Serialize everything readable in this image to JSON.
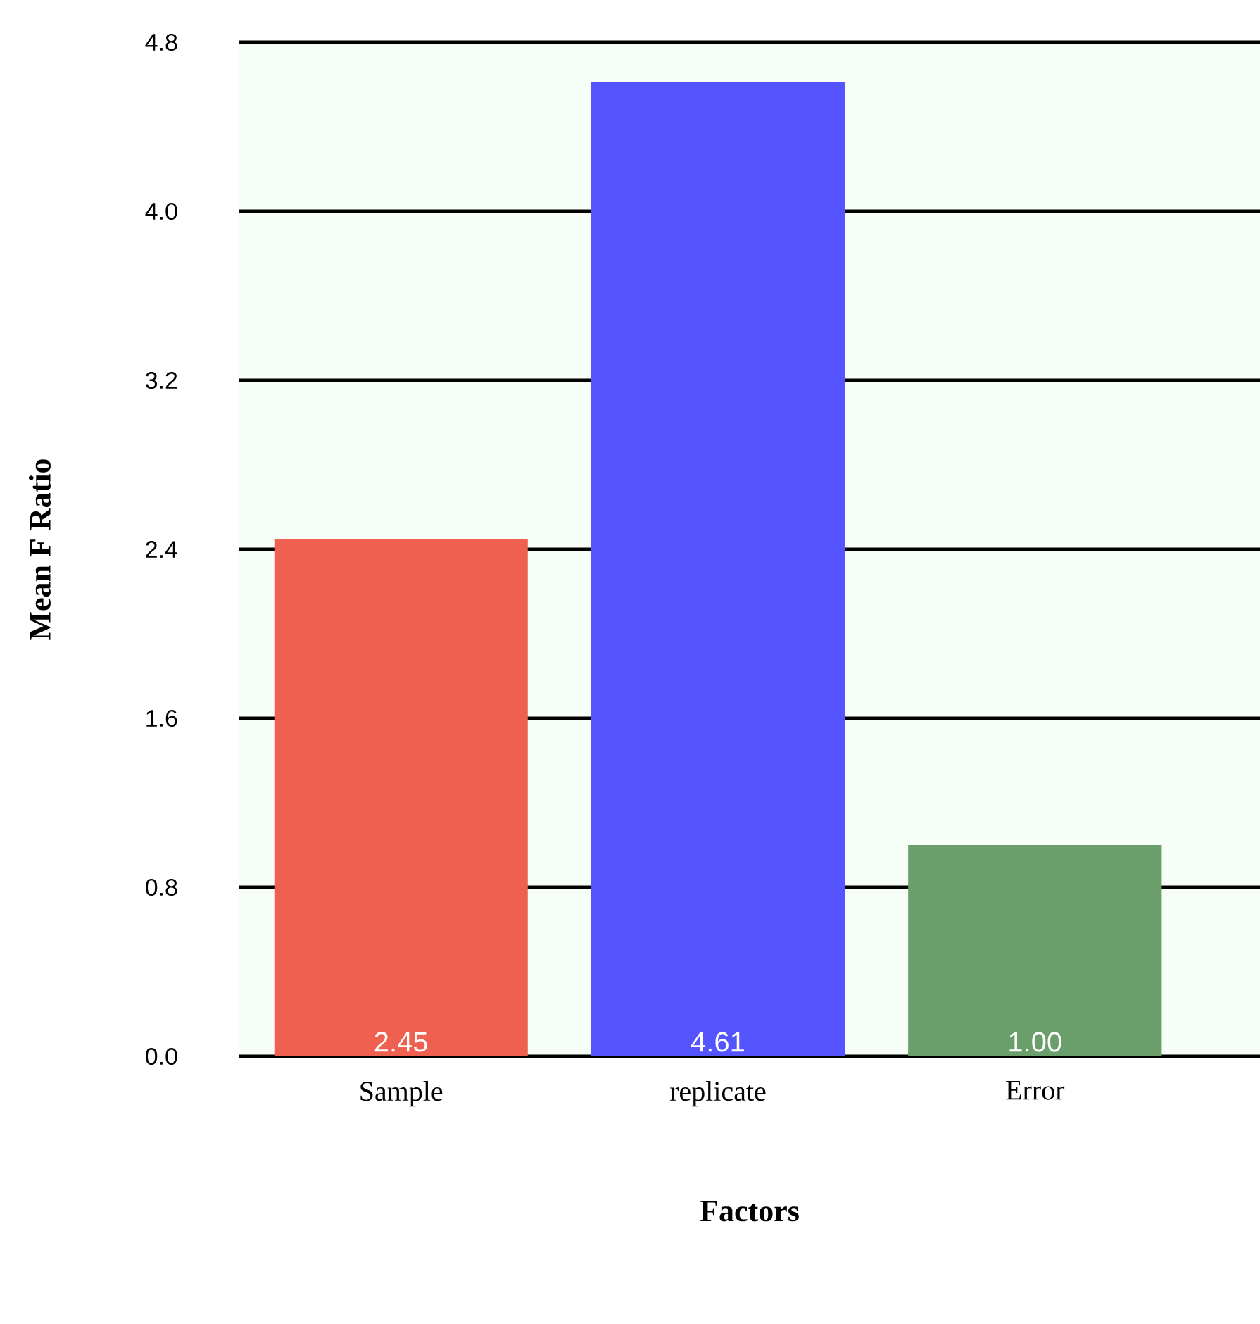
{
  "chart_data": {
    "type": "bar",
    "xlabel": "Factors",
    "ylabel": "Mean F Ratio",
    "categories": [
      "Sample",
      "replicate",
      "Error"
    ],
    "values": [
      2.45,
      4.61,
      1.0
    ],
    "colors": [
      "#f06050",
      "#5555ff",
      "#6a9e6a"
    ],
    "value_labels": [
      "2.45",
      "4.61",
      "1.00"
    ],
    "ylim": [
      0,
      4.8
    ],
    "yticks": [
      {
        "value": 0,
        "label": "0.0"
      },
      0.8,
      1.6,
      2.4,
      3.2,
      {
        "value": 4,
        "label": "4.0"
      },
      4.8
    ],
    "grid": "y"
  }
}
